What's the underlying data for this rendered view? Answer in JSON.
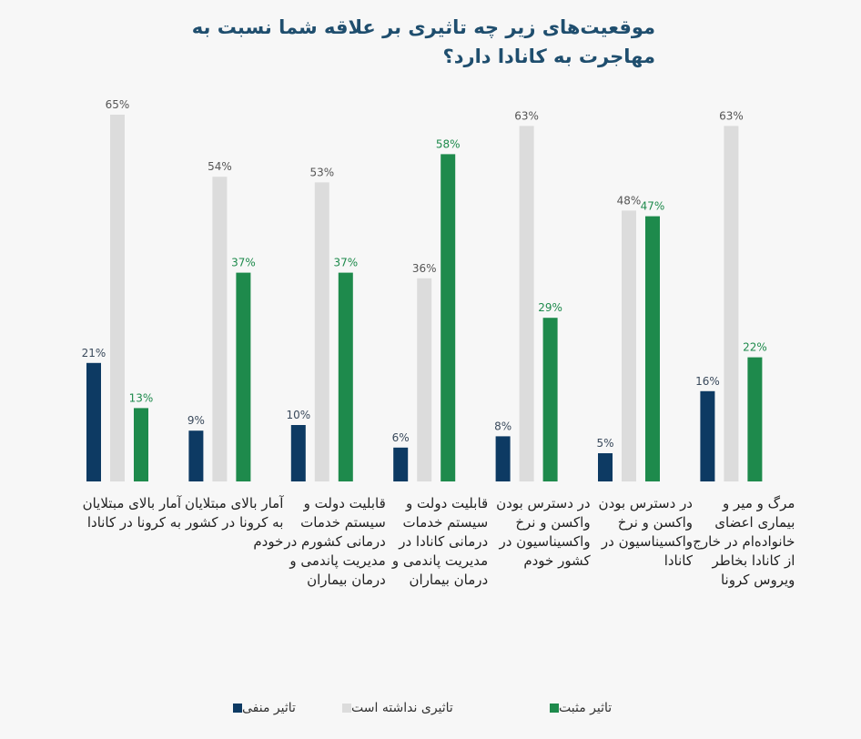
{
  "chart_data": {
    "type": "bar",
    "title": "موقعیت‌های زیر چه تاثیری بر علاقه شما نسبت به مهاجرت به کانادا دارد؟",
    "categories": [
      "آمار بالای مبتلایان به کرونا در کانادا",
      "آمار بالای مبتلایان به کرونا در کشور خودم",
      "قابلیت دولت و سیستم خدمات درمانی کشورم در مدیریت پاندمی و درمان بیماران",
      "قابلیت دولت و سیستم خدمات درمانی کانادا در مدیریت پاندمی و درمان بیماران",
      "در دسترس بودن واکسن و نرخ واکسیناسیون در کشور خودم",
      "در دسترس بودن واکسن و نرخ واکسیناسیون در کانادا",
      "مرگ و میر و بیماری اعضای خانواده‌ام در خارج از کانادا بخاطر ویروس کرونا"
    ],
    "series": [
      {
        "name": "تاثیر منفی",
        "color": "#0d3a63",
        "label_color": "#3a4a5c",
        "values": [
          21,
          9,
          10,
          6,
          8,
          5,
          16
        ]
      },
      {
        "name": "تاثیری نداشته است",
        "color": "#dcdcdc",
        "label_color": "#555555",
        "values": [
          65,
          54,
          53,
          36,
          63,
          48,
          63
        ]
      },
      {
        "name": "تاثیر مثبت",
        "color": "#1e8a4c",
        "label_color": "#1e8a4c",
        "values": [
          13,
          37,
          37,
          58,
          29,
          47,
          22
        ]
      }
    ],
    "value_suffix": "%",
    "ylim": [
      0,
      70
    ],
    "grid": false,
    "legend_position": "bottom"
  }
}
